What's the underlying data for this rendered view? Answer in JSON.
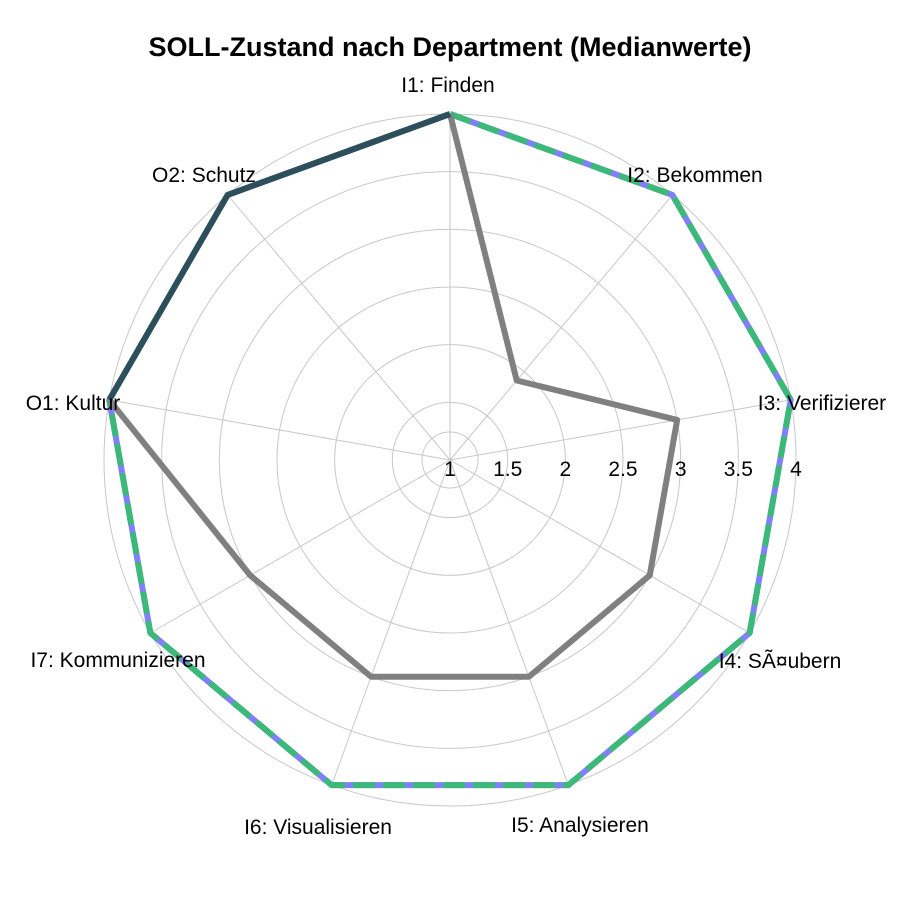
{
  "chart_data": {
    "type": "radar",
    "title": "SOLL-Zustand nach Department (Medianwerte)",
    "axes": [
      "I1: Finden",
      "I2: Bekommen",
      "I3: Verifizierer",
      "I4: SÃ¤ubern",
      "I5: Analysieren",
      "I6: Visualisieren",
      "I7: Kommunizieren",
      "O1: Kultur",
      "O2: Schutz"
    ],
    "rlim": [
      1,
      4
    ],
    "ticks": [
      "1",
      "1.5",
      "2",
      "2.5",
      "3",
      "3.5",
      "4"
    ],
    "tick_values": [
      1,
      1.5,
      2,
      2.5,
      3,
      3.5,
      4
    ],
    "grid": true,
    "series": [
      {
        "values": [
          4,
          4,
          4,
          4,
          4,
          4,
          4,
          4,
          4
        ],
        "color": "#8080ff",
        "style": "solid"
      },
      {
        "values": [
          4,
          4,
          4,
          4,
          4,
          4,
          4,
          4,
          4
        ],
        "color": "#3cb878",
        "style": "dashed",
        "dashed_axes": [
          0,
          1,
          2,
          3,
          4,
          5,
          6,
          7
        ]
      },
      {
        "values": [
          4,
          1.9,
          3,
          3,
          3,
          3,
          3,
          4,
          4
        ],
        "color": "#808080",
        "style": "solid",
        "solid_axes": [
          0,
          1,
          2,
          3,
          4,
          5,
          6,
          7
        ]
      },
      {
        "values": [
          4,
          4,
          4,
          4,
          4,
          4,
          4,
          4,
          4
        ],
        "color": "#2c4f5a",
        "style": "solid",
        "solid_axes": [
          7,
          8,
          0
        ]
      }
    ]
  }
}
